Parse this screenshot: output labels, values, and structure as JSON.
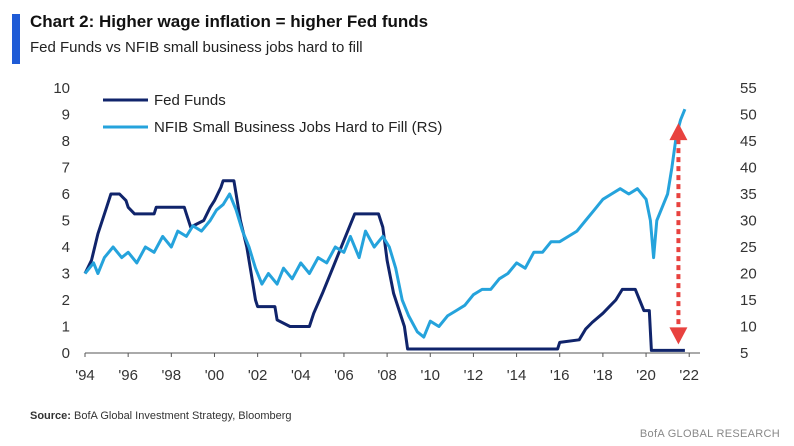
{
  "header": {
    "title": "Chart 2: Higher wage inflation = higher Fed funds",
    "subtitle": "Fed Funds vs NFIB small business jobs hard to fill"
  },
  "footer": {
    "source_label": "Source:",
    "source_text": "BofA Global Investment Strategy, Bloomberg",
    "branding": "BofA GLOBAL RESEARCH"
  },
  "chart_data": {
    "type": "line",
    "x_ticks": [
      "'94",
      "'96",
      "'98",
      "'00",
      "'02",
      "'04",
      "'06",
      "'08",
      "'10",
      "'12",
      "'14",
      "'16",
      "'18",
      "'20",
      "'22"
    ],
    "x_range": [
      1994,
      2022.5
    ],
    "y_left": {
      "ticks": [
        0,
        1,
        2,
        3,
        4,
        5,
        6,
        7,
        8,
        9,
        10
      ],
      "range": [
        0,
        10
      ]
    },
    "y_right": {
      "ticks": [
        5,
        10,
        15,
        20,
        25,
        30,
        35,
        40,
        45,
        50,
        55
      ],
      "range": [
        5,
        55
      ]
    },
    "legend_position": "top-left",
    "series": [
      {
        "name": "Fed Funds",
        "axis": "left",
        "color": "#10246b",
        "points": [
          [
            1994.0,
            3.0
          ],
          [
            1994.3,
            3.5
          ],
          [
            1994.6,
            4.5
          ],
          [
            1995.0,
            5.5
          ],
          [
            1995.2,
            6.0
          ],
          [
            1995.6,
            6.0
          ],
          [
            1995.9,
            5.75
          ],
          [
            1996.0,
            5.5
          ],
          [
            1996.3,
            5.25
          ],
          [
            1997.2,
            5.25
          ],
          [
            1997.3,
            5.5
          ],
          [
            1998.6,
            5.5
          ],
          [
            1998.7,
            5.25
          ],
          [
            1998.9,
            4.75
          ],
          [
            1999.5,
            5.0
          ],
          [
            1999.8,
            5.5
          ],
          [
            2000.0,
            5.75
          ],
          [
            2000.3,
            6.25
          ],
          [
            2000.4,
            6.5
          ],
          [
            2000.9,
            6.5
          ],
          [
            2001.0,
            6.0
          ],
          [
            2001.2,
            5.0
          ],
          [
            2001.5,
            4.0
          ],
          [
            2001.7,
            3.0
          ],
          [
            2001.9,
            2.0
          ],
          [
            2002.0,
            1.75
          ],
          [
            2002.8,
            1.75
          ],
          [
            2002.9,
            1.25
          ],
          [
            2003.5,
            1.0
          ],
          [
            2004.4,
            1.0
          ],
          [
            2004.6,
            1.5
          ],
          [
            2005.0,
            2.25
          ],
          [
            2005.5,
            3.25
          ],
          [
            2006.0,
            4.25
          ],
          [
            2006.5,
            5.25
          ],
          [
            2007.6,
            5.25
          ],
          [
            2007.8,
            4.75
          ],
          [
            2008.0,
            3.5
          ],
          [
            2008.3,
            2.25
          ],
          [
            2008.8,
            1.0
          ],
          [
            2008.95,
            0.15
          ],
          [
            2015.9,
            0.15
          ],
          [
            2016.0,
            0.4
          ],
          [
            2016.9,
            0.5
          ],
          [
            2017.2,
            0.9
          ],
          [
            2017.5,
            1.15
          ],
          [
            2018.0,
            1.5
          ],
          [
            2018.3,
            1.75
          ],
          [
            2018.6,
            2.0
          ],
          [
            2018.9,
            2.4
          ],
          [
            2019.5,
            2.4
          ],
          [
            2019.7,
            2.0
          ],
          [
            2019.9,
            1.6
          ],
          [
            2020.15,
            1.6
          ],
          [
            2020.25,
            0.1
          ],
          [
            2021.8,
            0.1
          ]
        ]
      },
      {
        "name": "NFIB Small Business Jobs Hard to Fill (RS)",
        "axis": "right",
        "color": "#25a3dc",
        "points": [
          [
            1994.0,
            20
          ],
          [
            1994.4,
            22
          ],
          [
            1994.6,
            20
          ],
          [
            1994.9,
            23
          ],
          [
            1995.3,
            25
          ],
          [
            1995.7,
            23
          ],
          [
            1996.0,
            24
          ],
          [
            1996.4,
            22
          ],
          [
            1996.8,
            25
          ],
          [
            1997.2,
            24
          ],
          [
            1997.6,
            27
          ],
          [
            1998.0,
            25
          ],
          [
            1998.3,
            28
          ],
          [
            1998.7,
            27
          ],
          [
            1999.0,
            29
          ],
          [
            1999.4,
            28
          ],
          [
            1999.8,
            30
          ],
          [
            2000.1,
            32
          ],
          [
            2000.4,
            33
          ],
          [
            2000.7,
            35
          ],
          [
            2001.0,
            32
          ],
          [
            2001.3,
            28
          ],
          [
            2001.6,
            25
          ],
          [
            2001.9,
            21
          ],
          [
            2002.2,
            18
          ],
          [
            2002.5,
            20
          ],
          [
            2002.9,
            18
          ],
          [
            2003.2,
            21
          ],
          [
            2003.6,
            19
          ],
          [
            2004.0,
            22
          ],
          [
            2004.4,
            20
          ],
          [
            2004.8,
            23
          ],
          [
            2005.2,
            22
          ],
          [
            2005.6,
            25
          ],
          [
            2006.0,
            24
          ],
          [
            2006.3,
            27
          ],
          [
            2006.7,
            23
          ],
          [
            2007.0,
            28
          ],
          [
            2007.4,
            25
          ],
          [
            2007.8,
            27
          ],
          [
            2008.1,
            25
          ],
          [
            2008.4,
            21
          ],
          [
            2008.7,
            15
          ],
          [
            2009.0,
            12
          ],
          [
            2009.4,
            9
          ],
          [
            2009.7,
            8
          ],
          [
            2010.0,
            11
          ],
          [
            2010.4,
            10
          ],
          [
            2010.8,
            12
          ],
          [
            2011.2,
            13
          ],
          [
            2011.6,
            14
          ],
          [
            2012.0,
            16
          ],
          [
            2012.4,
            17
          ],
          [
            2012.8,
            17
          ],
          [
            2013.2,
            19
          ],
          [
            2013.6,
            20
          ],
          [
            2014.0,
            22
          ],
          [
            2014.4,
            21
          ],
          [
            2014.8,
            24
          ],
          [
            2015.2,
            24
          ],
          [
            2015.6,
            26
          ],
          [
            2016.0,
            26
          ],
          [
            2016.4,
            27
          ],
          [
            2016.8,
            28
          ],
          [
            2017.2,
            30
          ],
          [
            2017.6,
            32
          ],
          [
            2018.0,
            34
          ],
          [
            2018.4,
            35
          ],
          [
            2018.8,
            36
          ],
          [
            2019.2,
            35
          ],
          [
            2019.6,
            36
          ],
          [
            2020.0,
            34
          ],
          [
            2020.2,
            30
          ],
          [
            2020.35,
            23
          ],
          [
            2020.5,
            30
          ],
          [
            2020.8,
            33
          ],
          [
            2021.0,
            35
          ],
          [
            2021.2,
            40
          ],
          [
            2021.4,
            46
          ],
          [
            2021.6,
            49
          ],
          [
            2021.8,
            51
          ]
        ]
      }
    ],
    "annotation": {
      "type": "double-arrow",
      "style": "dashed",
      "color": "#e8423f",
      "x": 2021.5,
      "y_left_from": 0.4,
      "y_left_to": 8.6
    }
  }
}
